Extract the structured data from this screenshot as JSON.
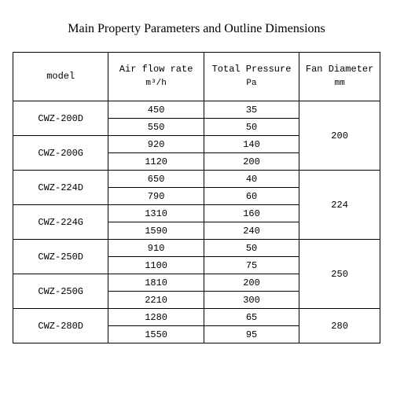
{
  "title": "Main Property Parameters and Outline Dimensions",
  "columns": {
    "model": {
      "label": "model",
      "sub": ""
    },
    "airflow": {
      "label": "Air flow rate",
      "sub": "m³/h"
    },
    "pressure": {
      "label": "Total Pressure",
      "sub": "Pa"
    },
    "diameter": {
      "label": "Fan Diameter",
      "sub": "mm"
    }
  },
  "groups": [
    {
      "diameter": "200",
      "models": [
        {
          "name": "CWZ-200D",
          "rows": [
            {
              "airflow": "450",
              "pressure": "35"
            },
            {
              "airflow": "550",
              "pressure": "50"
            }
          ]
        },
        {
          "name": "CWZ-200G",
          "rows": [
            {
              "airflow": "920",
              "pressure": "140"
            },
            {
              "airflow": "1120",
              "pressure": "200"
            }
          ]
        }
      ]
    },
    {
      "diameter": "224",
      "models": [
        {
          "name": "CWZ-224D",
          "rows": [
            {
              "airflow": "650",
              "pressure": "40"
            },
            {
              "airflow": "790",
              "pressure": "60"
            }
          ]
        },
        {
          "name": "CWZ-224G",
          "rows": [
            {
              "airflow": "1310",
              "pressure": "160"
            },
            {
              "airflow": "1590",
              "pressure": "240"
            }
          ]
        }
      ]
    },
    {
      "diameter": "250",
      "models": [
        {
          "name": "CWZ-250D",
          "rows": [
            {
              "airflow": "910",
              "pressure": "50"
            },
            {
              "airflow": "1100",
              "pressure": "75"
            }
          ]
        },
        {
          "name": "CWZ-250G",
          "rows": [
            {
              "airflow": "1810",
              "pressure": "200"
            },
            {
              "airflow": "2210",
              "pressure": "300"
            }
          ]
        }
      ]
    },
    {
      "diameter": "280",
      "models": [
        {
          "name": "CWZ-280D",
          "rows": [
            {
              "airflow": "1280",
              "pressure": "65"
            },
            {
              "airflow": "1550",
              "pressure": "95"
            }
          ]
        }
      ]
    }
  ],
  "col_widths": {
    "model": "26%",
    "airflow": "26%",
    "pressure": "26%",
    "diameter": "22%"
  }
}
